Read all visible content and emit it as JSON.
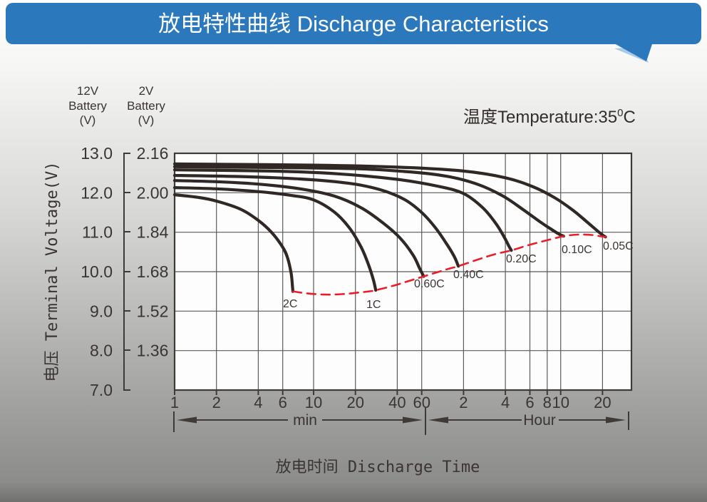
{
  "header": {
    "title": "放电特性曲线 Discharge Characteristics"
  },
  "note": {
    "prefix": "温度Temperature:35",
    "sup": "0",
    "suffix": "C"
  },
  "y_axis": {
    "col_12v_header": [
      "12V",
      "Battery",
      "(V)"
    ],
    "col_2v_header": [
      "2V",
      "Battery",
      "(V)"
    ],
    "axis_title": "电压 Terminal Voltage(V)",
    "ticks_12v": [
      "13.0",
      "12.0",
      "11.0",
      "10.0",
      "9.0",
      "8.0",
      "7.0"
    ],
    "ticks_2v": [
      "2.16",
      "2.00",
      "1.84",
      "1.68",
      "1.52",
      "1.36"
    ]
  },
  "x_axis": {
    "axis_title": "放电时间 Discharge Time",
    "min_section_label": "min",
    "hour_section_label": "Hour",
    "ticks_min": [
      "1",
      "2",
      "4",
      "6",
      "10",
      "20",
      "40",
      "60"
    ],
    "ticks_hour": [
      "2",
      "4",
      "6",
      "8",
      "10",
      "20"
    ]
  },
  "chart_data": {
    "type": "line",
    "title": "放电特性曲线 Discharge Characteristics",
    "xlabel": "放电时间 Discharge Time",
    "ylabel": "电压 Terminal Voltage(V)",
    "x_scale": "log",
    "x_unit": "minutes",
    "x_range_minutes": [
      1,
      1950
    ],
    "y_range_12v_volts": [
      7.0,
      13.0
    ],
    "y_range_2v_volts": [
      1.2,
      2.16
    ],
    "temperature_note": "温度Temperature:35°C",
    "grid": true,
    "series": [
      {
        "name": "2C",
        "label": "2C",
        "label_pos": [
          397,
          431
        ],
        "points_t_v": [
          [
            1,
            11.95
          ],
          [
            1.5,
            11.88
          ],
          [
            2,
            11.79
          ],
          [
            3,
            11.58
          ],
          [
            4,
            11.3
          ],
          [
            5,
            10.99
          ],
          [
            6,
            10.62
          ],
          [
            6.5,
            10.35
          ],
          [
            6.9,
            9.95
          ],
          [
            7.05,
            9.62
          ],
          [
            7.1,
            9.5
          ]
        ]
      },
      {
        "name": "1C",
        "label": "1C",
        "label_pos": [
          514,
          432
        ],
        "points_t_v": [
          [
            1,
            12.13
          ],
          [
            2,
            12.1
          ],
          [
            4,
            12.03
          ],
          [
            7,
            11.93
          ],
          [
            10,
            11.82
          ],
          [
            14,
            11.52
          ],
          [
            18,
            11.12
          ],
          [
            22,
            10.62
          ],
          [
            25,
            10.15
          ],
          [
            27,
            9.78
          ],
          [
            28,
            9.53
          ]
        ]
      },
      {
        "name": "0.60C",
        "label": "0.60C",
        "label_pos": [
          581,
          403
        ],
        "points_t_v": [
          [
            1,
            12.31
          ],
          [
            2,
            12.28
          ],
          [
            4,
            12.22
          ],
          [
            8,
            12.1
          ],
          [
            14,
            11.92
          ],
          [
            22,
            11.62
          ],
          [
            32,
            11.22
          ],
          [
            42,
            10.85
          ],
          [
            52,
            10.42
          ],
          [
            58,
            10.08
          ],
          [
            62,
            9.88
          ]
        ]
      },
      {
        "name": "0.40C",
        "label": "0.40C",
        "label_pos": [
          636,
          390
        ],
        "points_t_v": [
          [
            1,
            12.44
          ],
          [
            3,
            12.41
          ],
          [
            8,
            12.35
          ],
          [
            18,
            12.24
          ],
          [
            30,
            12.08
          ],
          [
            45,
            11.83
          ],
          [
            60,
            11.5
          ],
          [
            75,
            11.12
          ],
          [
            90,
            10.72
          ],
          [
            103,
            10.38
          ],
          [
            110,
            10.14
          ]
        ]
      },
      {
        "name": "0.20C",
        "label": "0.20C",
        "label_pos": [
          710,
          368
        ],
        "points_t_v": [
          [
            1,
            12.58
          ],
          [
            5,
            12.55
          ],
          [
            15,
            12.48
          ],
          [
            40,
            12.34
          ],
          [
            80,
            12.16
          ],
          [
            120,
            11.98
          ],
          [
            165,
            11.62
          ],
          [
            205,
            11.22
          ],
          [
            235,
            10.88
          ],
          [
            255,
            10.64
          ],
          [
            265,
            10.54
          ]
        ]
      },
      {
        "name": "0.10C",
        "label": "0.10C",
        "label_pos": [
          788,
          355
        ],
        "points_t_v": [
          [
            1,
            12.66
          ],
          [
            15,
            12.62
          ],
          [
            45,
            12.54
          ],
          [
            90,
            12.42
          ],
          [
            150,
            12.22
          ],
          [
            230,
            11.92
          ],
          [
            320,
            11.58
          ],
          [
            420,
            11.28
          ],
          [
            510,
            11.08
          ],
          [
            585,
            10.95
          ],
          [
            630,
            10.9
          ]
        ]
      },
      {
        "name": "0.05C",
        "label": "0.05C",
        "label_pos": [
          846,
          350
        ],
        "points_t_v": [
          [
            1,
            12.73
          ],
          [
            10,
            12.7
          ],
          [
            40,
            12.65
          ],
          [
            120,
            12.55
          ],
          [
            240,
            12.38
          ],
          [
            380,
            12.15
          ],
          [
            540,
            11.88
          ],
          [
            720,
            11.58
          ],
          [
            900,
            11.3
          ],
          [
            1080,
            11.06
          ],
          [
            1200,
            10.93
          ],
          [
            1260,
            10.88
          ]
        ]
      }
    ],
    "cutoff_line": {
      "name": "discharge-cutoff",
      "style": "dashed",
      "color": "#e81f2a",
      "points_t_v": [
        [
          7.1,
          9.5
        ],
        [
          9,
          9.45
        ],
        [
          12,
          9.42
        ],
        [
          16,
          9.43
        ],
        [
          21,
          9.47
        ],
        [
          25,
          9.5
        ],
        [
          28,
          9.53
        ],
        [
          38,
          9.65
        ],
        [
          50,
          9.78
        ],
        [
          62,
          9.88
        ],
        [
          80,
          10.0
        ],
        [
          95,
          10.08
        ],
        [
          110,
          10.14
        ],
        [
          150,
          10.3
        ],
        [
          200,
          10.44
        ],
        [
          265,
          10.54
        ],
        [
          350,
          10.67
        ],
        [
          470,
          10.79
        ],
        [
          630,
          10.9
        ],
        [
          800,
          10.94
        ],
        [
          1000,
          10.93
        ],
        [
          1150,
          10.9
        ],
        [
          1260,
          10.88
        ]
      ]
    }
  },
  "colors": {
    "banner_blue": "#2b79bc",
    "banner_tail_highlight": "#a9c9e8",
    "curve_stroke": "#2f2825",
    "cutoff_red": "#e81f2a",
    "grid_gray": "#5a5a5a",
    "axis_text": "#3b3430",
    "plot_background": "#fdfdfd"
  }
}
